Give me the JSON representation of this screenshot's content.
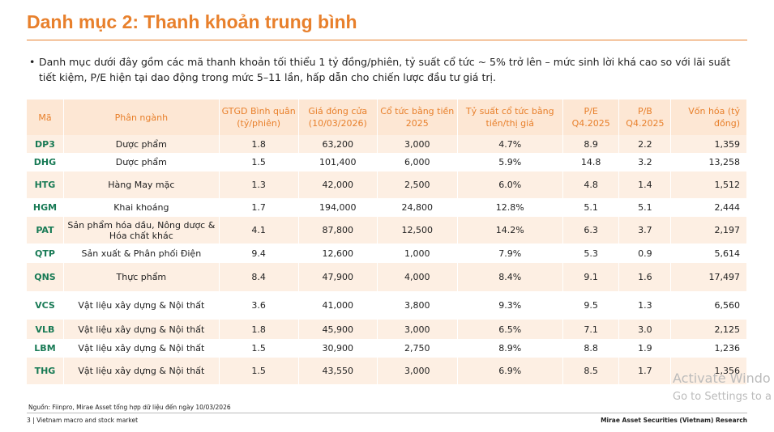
{
  "header": {
    "title": "Danh mục 2: Thanh khoản trung bình"
  },
  "bullet": "Danh mục dưới đây gồm các mã thanh khoản tối thiểu 1 tỷ đồng/phiên, tỷ suất cổ tức ~ 5% trở lên – mức sinh lời khá cao so với lãi suất tiết kiệm, P/E hiện tại dao động trong mức 5–11 lần, hấp dẫn cho chiến lược đầu tư giá trị.",
  "table": {
    "columns": [
      "Mã",
      "Phân ngành",
      "GTGD Bình quân (tỷ/phiên)",
      "Giá đóng cửa (10/03/2026)",
      "Cổ tức bằng tiền 2025",
      "Tỷ suất cổ tức bằng tiền/thị giá",
      "P/E Q4.2025",
      "P/B Q4.2025",
      "Vốn hóa (tỷ đồng)"
    ],
    "rows": [
      [
        "DP3",
        "Dược phẩm",
        "1.8",
        "63,200",
        "3,000",
        "4.7%",
        "8.9",
        "2.2",
        "1,359"
      ],
      [
        "DHG",
        "Dược phẩm",
        "1.5",
        "101,400",
        "6,000",
        "5.9%",
        "14.8",
        "3.2",
        "13,258"
      ],
      [
        "HTG",
        "Hàng May mặc",
        "1.3",
        "42,000",
        "2,500",
        "6.0%",
        "4.8",
        "1.4",
        "1,512"
      ],
      [
        "HGM",
        "Khai khoáng",
        "1.7",
        "194,000",
        "24,800",
        "12.8%",
        "5.1",
        "5.1",
        "2,444"
      ],
      [
        "PAT",
        "Sản phẩm hóa dầu, Nông dược & Hóa chất khác",
        "4.1",
        "87,800",
        "12,500",
        "14.2%",
        "6.3",
        "3.7",
        "2,197"
      ],
      [
        "QTP",
        "Sản xuất & Phân phối Điện",
        "9.4",
        "12,600",
        "1,000",
        "7.9%",
        "5.3",
        "0.9",
        "5,614"
      ],
      [
        "QNS",
        "Thực phẩm",
        "8.4",
        "47,900",
        "4,000",
        "8.4%",
        "9.1",
        "1.6",
        "17,497"
      ],
      [
        "VCS",
        "Vật liệu xây dựng & Nội thất",
        "3.6",
        "41,000",
        "3,800",
        "9.3%",
        "9.5",
        "1.3",
        "6,560"
      ],
      [
        "VLB",
        "Vật liệu xây dựng & Nội thất",
        "1.8",
        "45,900",
        "3,000",
        "6.5%",
        "7.1",
        "3.0",
        "2,125"
      ],
      [
        "LBM",
        "Vật liệu xây dựng & Nội thất",
        "1.5",
        "30,900",
        "2,750",
        "8.9%",
        "8.8",
        "1.9",
        "1,236"
      ],
      [
        "THG",
        "Vật liệu xây dựng & Nội thất",
        "1.5",
        "43,550",
        "3,000",
        "6.9%",
        "8.5",
        "1.7",
        "1,356"
      ]
    ]
  },
  "source": "Nguồn: Fiinpro, Mirae Asset tổng hợp dữ liệu đến ngày 10/03/2026",
  "footer": {
    "left": "3 | Vietnam macro and stock market",
    "right": "Mirae Asset Securities (Vietnam) Research"
  },
  "watermark": {
    "line1": "Activate Windo",
    "line2": "Go to Settings to a"
  }
}
